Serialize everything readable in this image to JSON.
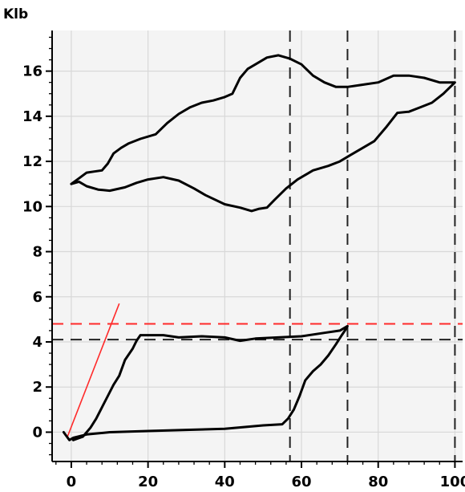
{
  "chart_data": {
    "type": "line",
    "title": "",
    "xlabel": "",
    "ylabel": "Klb",
    "xlim": [
      -5,
      102
    ],
    "ylim": [
      -1.3,
      17.8
    ],
    "x_ticks": [
      0,
      20,
      40,
      60,
      80,
      100
    ],
    "y_ticks": [
      0,
      2,
      4,
      6,
      8,
      10,
      12,
      14,
      16
    ],
    "x_tick_labels": [
      "0",
      "20",
      "40",
      "60",
      "80",
      "100"
    ],
    "y_tick_labels": [
      "0",
      "2",
      "4",
      "6",
      "8",
      "10",
      "12",
      "14",
      "16"
    ],
    "grid": true,
    "legend": "none",
    "colors": {
      "background": "#f4f4f4",
      "grid": "#d8d8d8",
      "curve": "#000000",
      "reference_red": "#ff2a2a",
      "reference_dark": "#222222"
    },
    "series": [
      {
        "values": [
          [
            -2,
            0.0
          ],
          [
            -0.5,
            -0.35
          ],
          [
            0.5,
            -0.25
          ],
          [
            4,
            -0.1
          ],
          [
            10,
            0.0
          ],
          [
            20,
            0.05
          ],
          [
            30,
            0.1
          ],
          [
            40,
            0.15
          ],
          [
            50,
            0.3
          ],
          [
            55,
            0.35
          ],
          [
            56.5,
            0.6
          ],
          [
            58,
            1.0
          ],
          [
            59.5,
            1.6
          ],
          [
            61,
            2.3
          ],
          [
            63,
            2.7
          ],
          [
            65,
            3.0
          ],
          [
            67,
            3.4
          ],
          [
            69,
            3.9
          ],
          [
            70.5,
            4.3
          ],
          [
            71.5,
            4.55
          ],
          [
            72,
            4.7
          ],
          [
            70,
            4.5
          ],
          [
            66,
            4.4
          ],
          [
            60,
            4.25
          ],
          [
            54,
            4.2
          ],
          [
            48,
            4.15
          ],
          [
            44,
            4.05
          ],
          [
            40,
            4.2
          ],
          [
            34,
            4.25
          ],
          [
            28,
            4.2
          ],
          [
            24,
            4.3
          ],
          [
            20,
            4.3
          ],
          [
            18,
            4.3
          ],
          [
            17,
            4.05
          ],
          [
            16,
            3.7
          ],
          [
            14,
            3.2
          ],
          [
            12.5,
            2.5
          ],
          [
            11,
            2.1
          ],
          [
            9.5,
            1.6
          ],
          [
            8,
            1.1
          ],
          [
            6.5,
            0.6
          ],
          [
            5,
            0.2
          ],
          [
            3,
            -0.2
          ],
          [
            0.5,
            -0.35
          ]
        ]
      },
      {
        "values": [
          [
            0,
            11.0
          ],
          [
            2,
            11.25
          ],
          [
            4,
            11.5
          ],
          [
            6,
            11.55
          ],
          [
            8,
            11.6
          ],
          [
            9.5,
            11.9
          ],
          [
            11,
            12.35
          ],
          [
            13,
            12.6
          ],
          [
            15,
            12.8
          ],
          [
            18,
            13.0
          ],
          [
            22,
            13.2
          ],
          [
            25,
            13.7
          ],
          [
            28,
            14.1
          ],
          [
            31,
            14.4
          ],
          [
            34,
            14.6
          ],
          [
            37,
            14.7
          ],
          [
            40,
            14.85
          ],
          [
            42,
            15.0
          ],
          [
            44,
            15.7
          ],
          [
            46,
            16.1
          ],
          [
            48,
            16.3
          ],
          [
            51,
            16.6
          ],
          [
            54,
            16.7
          ],
          [
            57,
            16.55
          ],
          [
            60,
            16.3
          ],
          [
            63,
            15.8
          ],
          [
            66,
            15.5
          ],
          [
            69,
            15.3
          ],
          [
            72,
            15.3
          ],
          [
            76,
            15.4
          ],
          [
            80,
            15.5
          ],
          [
            84,
            15.8
          ],
          [
            88,
            15.8
          ],
          [
            92,
            15.7
          ],
          [
            96,
            15.5
          ],
          [
            100,
            15.5
          ],
          [
            97,
            15.0
          ],
          [
            94,
            14.6
          ],
          [
            91,
            14.4
          ],
          [
            88,
            14.2
          ],
          [
            85,
            14.15
          ],
          [
            82,
            13.5
          ],
          [
            79,
            12.9
          ],
          [
            76,
            12.6
          ],
          [
            73,
            12.3
          ],
          [
            70,
            12.0
          ],
          [
            67,
            11.8
          ],
          [
            63,
            11.6
          ],
          [
            59,
            11.2
          ],
          [
            56,
            10.8
          ],
          [
            53,
            10.3
          ],
          [
            51,
            9.95
          ],
          [
            49,
            9.9
          ],
          [
            47,
            9.8
          ],
          [
            44,
            9.95
          ],
          [
            40,
            10.1
          ],
          [
            35,
            10.5
          ],
          [
            32,
            10.8
          ],
          [
            28,
            11.15
          ],
          [
            24,
            11.3
          ],
          [
            20,
            11.2
          ],
          [
            17,
            11.05
          ],
          [
            14,
            10.85
          ],
          [
            10,
            10.7
          ],
          [
            7,
            10.75
          ],
          [
            4,
            10.9
          ],
          [
            2,
            11.1
          ],
          [
            0,
            11.0
          ]
        ]
      }
    ],
    "reference_lines": {
      "vertical_dashed": [
        57,
        72,
        100
      ],
      "horizontal_dashed": [
        {
          "y": 4.1,
          "color": "#222222"
        },
        {
          "y": 4.8,
          "color": "#ff2a2a"
        }
      ],
      "red_slope": {
        "from": [
          -1,
          -0.2
        ],
        "to": [
          12.5,
          5.7
        ]
      }
    }
  }
}
